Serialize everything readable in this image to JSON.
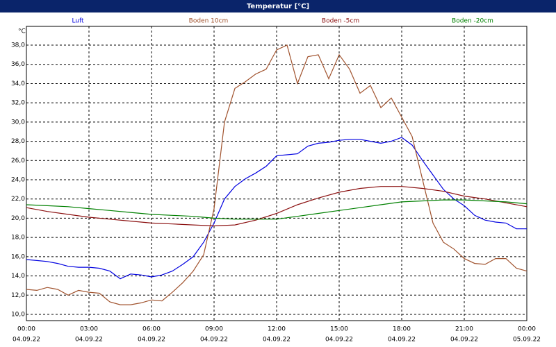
{
  "chart_data": {
    "type": "line",
    "title": "Temperatur [°C]",
    "y_unit": "°C",
    "xlim": [
      0,
      24
    ],
    "ylim": [
      9.35,
      39.95
    ],
    "grid": true,
    "xticks": [
      {
        "value": 0,
        "label": "00:00"
      },
      {
        "value": 3,
        "label": "03:00"
      },
      {
        "value": 6,
        "label": "06:00"
      },
      {
        "value": 9,
        "label": "09:00"
      },
      {
        "value": 12,
        "label": "12:00"
      },
      {
        "value": 15,
        "label": "15:00"
      },
      {
        "value": 18,
        "label": "18:00"
      },
      {
        "value": 21,
        "label": "21:00"
      },
      {
        "value": 24,
        "label": "00:00"
      }
    ],
    "xtick_dates": [
      "04.09.22",
      "04.09.22",
      "04.09.22",
      "04.09.22",
      "04.09.22",
      "04.09.22",
      "04.09.22",
      "04.09.22",
      "05.09.22"
    ],
    "yticks": [
      {
        "value": 10,
        "label": "10,0"
      },
      {
        "value": 12,
        "label": "12,0"
      },
      {
        "value": 14,
        "label": "14,0"
      },
      {
        "value": 16,
        "label": "16,0"
      },
      {
        "value": 18,
        "label": "18,0"
      },
      {
        "value": 20,
        "label": "20,0"
      },
      {
        "value": 22,
        "label": "22,0"
      },
      {
        "value": 24,
        "label": "24,0"
      },
      {
        "value": 26,
        "label": "26,0"
      },
      {
        "value": 28,
        "label": "28,0"
      },
      {
        "value": 30,
        "label": "30,0"
      },
      {
        "value": 32,
        "label": "32,0"
      },
      {
        "value": 34,
        "label": "34,0"
      },
      {
        "value": 36,
        "label": "36,0"
      },
      {
        "value": 38,
        "label": "38,0"
      }
    ],
    "series": [
      {
        "name": "Luft",
        "color": "#0000e0",
        "x": [
          0,
          0.5,
          1,
          1.5,
          2,
          2.5,
          3,
          3.5,
          4,
          4.5,
          5,
          5.5,
          6,
          6.5,
          7,
          7.5,
          8,
          8.5,
          9,
          9.5,
          10,
          10.5,
          11,
          11.5,
          12,
          12.5,
          13,
          13.5,
          14,
          14.5,
          15,
          15.5,
          16,
          16.5,
          17,
          17.5,
          18,
          18.5,
          19,
          19.5,
          20,
          20.5,
          21,
          21.5,
          22,
          22.5,
          23,
          23.5,
          24
        ],
        "values": [
          15.7,
          15.6,
          15.5,
          15.3,
          15.0,
          14.9,
          14.9,
          14.8,
          14.5,
          13.7,
          14.2,
          14.1,
          13.9,
          14.1,
          14.5,
          15.2,
          16.0,
          17.5,
          19.5,
          22.0,
          23.3,
          24.1,
          24.7,
          25.4,
          26.5,
          26.6,
          26.7,
          27.5,
          27.8,
          27.9,
          28.1,
          28.2,
          28.2,
          28.0,
          27.8,
          28.0,
          28.4,
          27.6,
          26.0,
          24.5,
          23.0,
          22.0,
          21.3,
          20.3,
          19.8,
          19.6,
          19.5,
          18.9,
          18.9
        ]
      },
      {
        "name": "Boden 10cm",
        "color": "#a0522d",
        "x": [
          0,
          0.5,
          1,
          1.5,
          2,
          2.5,
          3,
          3.5,
          4,
          4.5,
          5,
          5.5,
          6,
          6.5,
          7,
          7.5,
          8,
          8.5,
          9,
          9.5,
          10,
          10.5,
          11,
          11.5,
          12,
          12.5,
          13,
          13.5,
          14,
          14.5,
          15,
          15.5,
          16,
          16.5,
          17,
          17.5,
          18,
          18.5,
          19,
          19.5,
          20,
          20.5,
          21,
          21.5,
          22,
          22.5,
          23,
          23.5,
          24
        ],
        "values": [
          12.6,
          12.5,
          12.8,
          12.6,
          12.0,
          12.5,
          12.3,
          12.2,
          11.3,
          11.0,
          11.0,
          11.2,
          11.5,
          11.4,
          12.3,
          13.3,
          14.5,
          16.2,
          21.0,
          30.0,
          33.5,
          34.2,
          35.0,
          35.5,
          37.5,
          38.0,
          34.0,
          36.8,
          37.0,
          34.5,
          37.0,
          35.5,
          33.0,
          33.8,
          31.5,
          32.5,
          30.5,
          28.5,
          24.0,
          19.5,
          17.5,
          16.8,
          15.8,
          15.3,
          15.2,
          15.8,
          15.8,
          14.8,
          14.5
        ]
      },
      {
        "name": "Boden -5cm",
        "color": "#8b1010",
        "x": [
          0,
          1,
          2,
          3,
          4,
          5,
          6,
          7,
          8,
          9,
          10,
          11,
          12,
          13,
          14,
          15,
          16,
          17,
          18,
          19,
          20,
          21,
          22,
          23,
          24
        ],
        "values": [
          21.1,
          20.7,
          20.4,
          20.1,
          19.9,
          19.7,
          19.5,
          19.4,
          19.3,
          19.2,
          19.3,
          19.8,
          20.5,
          21.4,
          22.1,
          22.7,
          23.1,
          23.3,
          23.3,
          23.1,
          22.8,
          22.3,
          22.0,
          21.6,
          21.2
        ]
      },
      {
        "name": "Boden -20cm",
        "color": "#008000",
        "x": [
          0,
          1,
          2,
          3,
          4,
          5,
          6,
          7,
          8,
          9,
          10,
          11,
          12,
          13,
          14,
          15,
          16,
          17,
          18,
          19,
          20,
          21,
          22,
          23,
          24
        ],
        "values": [
          21.4,
          21.3,
          21.2,
          21.0,
          20.8,
          20.6,
          20.4,
          20.3,
          20.2,
          20.0,
          19.9,
          19.9,
          19.9,
          20.2,
          20.5,
          20.8,
          21.1,
          21.4,
          21.7,
          21.8,
          21.9,
          21.9,
          21.8,
          21.7,
          21.5
        ]
      }
    ]
  }
}
